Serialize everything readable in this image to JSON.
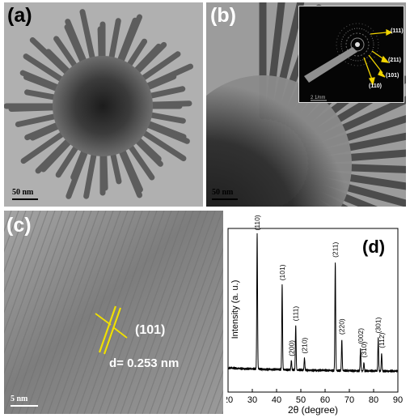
{
  "figure": {
    "panel_a": {
      "label": "(a)",
      "scale_bar": "50 nm"
    },
    "panel_b": {
      "label": "(b)",
      "scale_bar": "50 nm",
      "inset": {
        "scale_bar": "2 1/nm",
        "rings": [
          "(111)",
          "(211)",
          "(101)",
          "(110)"
        ]
      }
    },
    "panel_c": {
      "label": "(c)",
      "plane": "(101)",
      "d_spacing": "d= 0.253 nm",
      "scale_bar": "5 nm"
    },
    "panel_d": {
      "label": "(d)"
    }
  },
  "chart_data": {
    "type": "line",
    "title": "",
    "xlabel": "2θ (degree)",
    "ylabel": "Intensity (a. u.)",
    "xlim": [
      20,
      90
    ],
    "xticks": [
      20,
      30,
      40,
      50,
      60,
      70,
      80,
      90
    ],
    "grid": false,
    "baseline": 0.07,
    "peaks": [
      {
        "x": 32.0,
        "height": 1.0,
        "label": "(110)"
      },
      {
        "x": 42.3,
        "height": 0.63,
        "label": "(101)"
      },
      {
        "x": 46.1,
        "height": 0.07,
        "label": "(200)"
      },
      {
        "x": 47.9,
        "height": 0.33,
        "label": "(111)"
      },
      {
        "x": 51.5,
        "height": 0.09,
        "label": "(210)"
      },
      {
        "x": 64.2,
        "height": 0.8,
        "label": "(211)"
      },
      {
        "x": 66.9,
        "height": 0.23,
        "label": "(220)"
      },
      {
        "x": 74.6,
        "height": 0.16,
        "label": "(002)"
      },
      {
        "x": 76.0,
        "height": 0.06,
        "label": "(310)"
      },
      {
        "x": 81.9,
        "height": 0.24,
        "label": "(301)"
      },
      {
        "x": 83.3,
        "height": 0.13,
        "label": "(112)"
      }
    ]
  }
}
